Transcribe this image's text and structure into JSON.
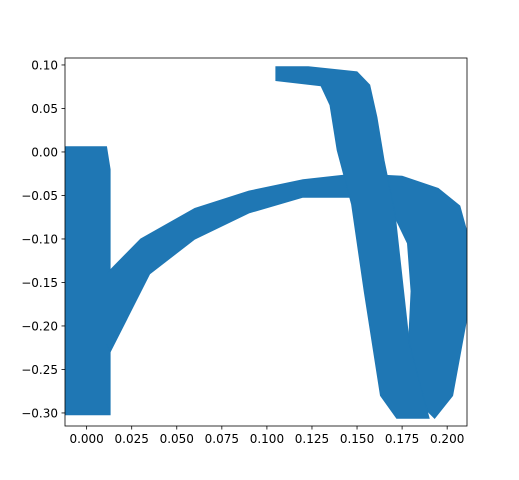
{
  "chart_data": {
    "type": "area",
    "title": "",
    "xlabel": "",
    "ylabel": "",
    "xlim": [
      -0.012,
      0.211
    ],
    "ylim": [
      -0.315,
      0.108
    ],
    "x_ticks": [
      0.0,
      0.025,
      0.05,
      0.075,
      0.1,
      0.125,
      0.15,
      0.175,
      0.2
    ],
    "x_tick_labels": [
      "0.000",
      "0.025",
      "0.050",
      "0.075",
      "0.100",
      "0.125",
      "0.150",
      "0.175",
      "0.200"
    ],
    "y_ticks": [
      0.1,
      0.05,
      0.0,
      -0.05,
      -0.1,
      -0.15,
      -0.2,
      -0.25,
      -0.3
    ],
    "y_tick_labels": [
      "0.10",
      "0.05",
      "0.00",
      "−0.05",
      "−0.10",
      "−0.15",
      "−0.20",
      "−0.25",
      "−0.30"
    ],
    "grid": false,
    "fill_color": "#1f77b4",
    "shapes": [
      {
        "name": "left-vertical-band",
        "polygon": [
          [
            -0.012,
            0.006
          ],
          [
            0.011,
            0.006
          ],
          [
            0.013,
            -0.02
          ],
          [
            0.013,
            -0.302
          ],
          [
            -0.012,
            -0.302
          ]
        ]
      },
      {
        "name": "arc-band",
        "polygon": [
          [
            0.011,
            -0.14
          ],
          [
            0.03,
            -0.1
          ],
          [
            0.06,
            -0.065
          ],
          [
            0.09,
            -0.045
          ],
          [
            0.12,
            -0.032
          ],
          [
            0.15,
            -0.025
          ],
          [
            0.175,
            -0.028
          ],
          [
            0.195,
            -0.042
          ],
          [
            0.207,
            -0.062
          ],
          [
            0.211,
            -0.092
          ],
          [
            0.211,
            -0.19
          ],
          [
            0.203,
            -0.28
          ],
          [
            0.193,
            -0.306
          ],
          [
            0.182,
            -0.283
          ],
          [
            0.178,
            -0.245
          ],
          [
            0.18,
            -0.16
          ],
          [
            0.178,
            -0.105
          ],
          [
            0.171,
            -0.075
          ],
          [
            0.15,
            -0.052
          ],
          [
            0.12,
            -0.052
          ],
          [
            0.09,
            -0.07
          ],
          [
            0.06,
            -0.1
          ],
          [
            0.035,
            -0.14
          ],
          [
            0.013,
            -0.23
          ],
          [
            0.011,
            -0.22
          ]
        ]
      },
      {
        "name": "diagonal-band",
        "polygon": [
          [
            0.105,
            0.098
          ],
          [
            0.123,
            0.098
          ],
          [
            0.15,
            0.092
          ],
          [
            0.157,
            0.077
          ],
          [
            0.161,
            0.04
          ],
          [
            0.165,
            -0.01
          ],
          [
            0.171,
            -0.07
          ],
          [
            0.179,
            -0.22
          ],
          [
            0.19,
            -0.306
          ],
          [
            0.172,
            -0.306
          ],
          [
            0.163,
            -0.28
          ],
          [
            0.154,
            -0.16
          ],
          [
            0.147,
            -0.06
          ],
          [
            0.139,
            0.002
          ],
          [
            0.135,
            0.054
          ],
          [
            0.13,
            0.076
          ],
          [
            0.105,
            0.082
          ]
        ]
      }
    ]
  }
}
